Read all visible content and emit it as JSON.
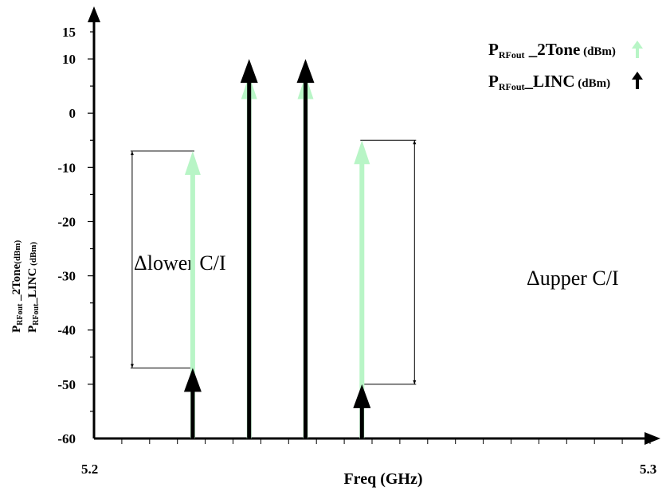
{
  "chart_data": {
    "type": "bar",
    "xlabel": "Freq (GHz)",
    "ylabel_line1": {
      "main": "P",
      "sub": "RFout",
      "rest": " _2Tone",
      "unit": "(dBm)"
    },
    "ylabel_line2": {
      "main": "P",
      "sub": "RFout",
      "rest": "_LINC",
      "unit": " (dBm)"
    },
    "xlim": [
      5.2,
      5.3
    ],
    "ylim": [
      -60,
      15
    ],
    "x_tick_labels": [
      "5.2",
      "5.3"
    ],
    "y_tick_labels": [
      "15",
      "10",
      "0",
      "-10",
      "-20",
      "-30",
      "-40",
      "-50",
      "-60"
    ],
    "y_tick_values": [
      15,
      10,
      0,
      -10,
      -20,
      -30,
      -40,
      -50,
      -60
    ],
    "legend": [
      {
        "main": "P",
        "sub": "RFout",
        "rest": " _2Tone",
        "unit": " (dBm)",
        "color": "#b8f5c6"
      },
      {
        "main": "P",
        "sub": "RFout",
        "rest": "_LINC",
        "unit": "  (dBm)",
        "color": "#000000"
      }
    ],
    "series": [
      {
        "name": "P RFout _2Tone (dBm)",
        "color": "#b8f5c6",
        "x": [
          5.2175,
          5.2275,
          5.2375,
          5.2475
        ],
        "values": [
          -7,
          7,
          7,
          -5
        ]
      },
      {
        "name": "P RFout_LINC (dBm)",
        "color": "#000000",
        "x": [
          5.2175,
          5.2275,
          5.2375,
          5.2475
        ],
        "values": [
          -47,
          10,
          10,
          -50
        ]
      }
    ],
    "annotations": [
      {
        "label": "Δlower C/I",
        "from": -7,
        "to": -47,
        "side": "left"
      },
      {
        "label": "Δupper C/I",
        "from": -5,
        "to": -50,
        "side": "right"
      }
    ]
  }
}
